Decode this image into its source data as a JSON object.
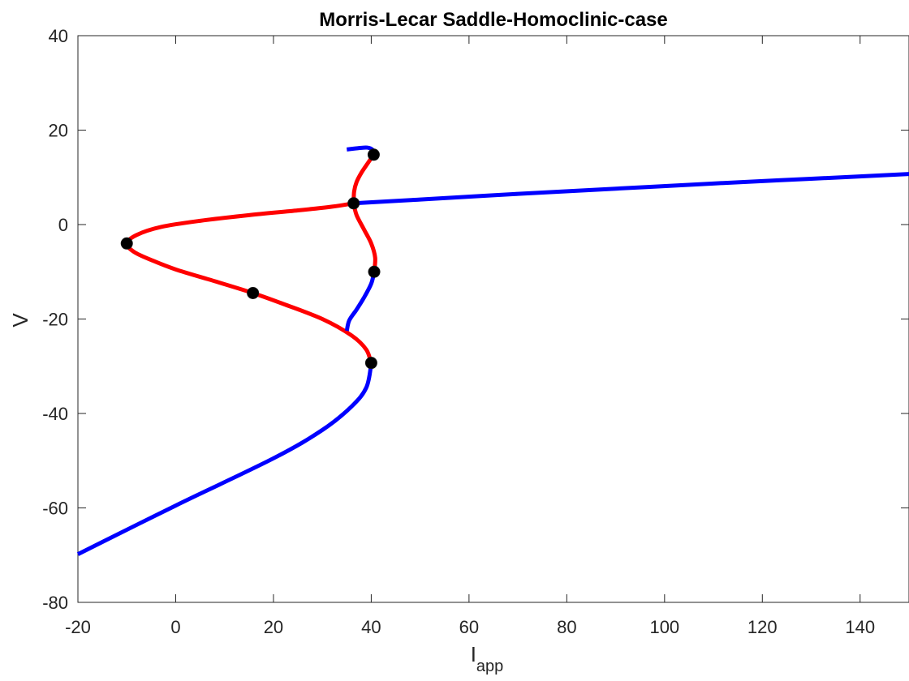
{
  "chart_data": {
    "type": "line",
    "title": "Morris-Lecar Saddle-Homoclinic-case",
    "xlabel_main": "I",
    "xlabel_sub": "app",
    "ylabel": "V",
    "xlim": [
      -20,
      150
    ],
    "ylim": [
      -80,
      40
    ],
    "x_ticks": [
      "-20",
      "0",
      "20",
      "40",
      "60",
      "80",
      "100",
      "120",
      "140"
    ],
    "y_ticks": [
      "-80",
      "-60",
      "-40",
      "-20",
      "0",
      "20",
      "40"
    ],
    "grid": false,
    "colors": {
      "stable": "#0000ff",
      "unstable": "#ff0000",
      "points": "#000000"
    },
    "series": [
      {
        "color": "#0000ff",
        "points": [
          [
            -20,
            -69.8
          ],
          [
            0,
            -59.5
          ],
          [
            20,
            -49.5
          ],
          [
            30,
            -43.5
          ],
          [
            36,
            -38.5
          ],
          [
            39,
            -34.5
          ],
          [
            40,
            -29.5
          ]
        ]
      },
      {
        "color": "#ff0000",
        "points": [
          [
            40,
            -29.5
          ],
          [
            39,
            -26.5
          ],
          [
            36,
            -23.5
          ],
          [
            30,
            -20
          ],
          [
            22,
            -16.8
          ],
          [
            15.8,
            -14.5
          ],
          [
            8,
            -12
          ],
          [
            0,
            -9.5
          ],
          [
            -5,
            -7.5
          ],
          [
            -8.5,
            -5.8
          ],
          [
            -10,
            -4
          ],
          [
            -8,
            -2.2
          ],
          [
            -3,
            -0.5
          ],
          [
            5,
            0.8
          ],
          [
            15,
            2
          ],
          [
            25,
            3
          ],
          [
            32,
            3.8
          ],
          [
            36.4,
            4.5
          ]
        ]
      },
      {
        "color": "#0000ff",
        "points": [
          [
            36.4,
            4.5
          ],
          [
            50,
            5.3
          ],
          [
            70,
            6.5
          ],
          [
            90,
            7.6
          ],
          [
            110,
            8.7
          ],
          [
            130,
            9.7
          ],
          [
            150,
            10.7
          ]
        ]
      },
      {
        "color": "#ff0000",
        "points": [
          [
            36.4,
            4.5
          ],
          [
            37,
            2
          ],
          [
            38.5,
            -1
          ],
          [
            40,
            -4
          ],
          [
            40.8,
            -7
          ],
          [
            40.6,
            -10
          ]
        ]
      },
      {
        "color": "#0000ff",
        "points": [
          [
            40.6,
            -10
          ],
          [
            40,
            -12.5
          ],
          [
            38.5,
            -15.5
          ],
          [
            37,
            -18
          ],
          [
            35.5,
            -20.3
          ],
          [
            35,
            -22.5
          ]
        ]
      },
      {
        "color": "#ff0000",
        "points": [
          [
            36.4,
            4.5
          ],
          [
            36.5,
            7
          ],
          [
            37,
            9
          ],
          [
            38,
            11
          ],
          [
            39.3,
            13
          ],
          [
            40.5,
            14.8
          ]
        ]
      },
      {
        "color": "#0000ff",
        "points": [
          [
            40.5,
            14.8
          ],
          [
            40.3,
            15.8
          ],
          [
            39.2,
            16.3
          ],
          [
            37.5,
            16.2
          ],
          [
            35,
            15.9
          ]
        ]
      }
    ],
    "markers": [
      [
        40.5,
        14.8
      ],
      [
        36.4,
        4.5
      ],
      [
        -10,
        -4
      ],
      [
        40.6,
        -10
      ],
      [
        15.8,
        -14.5
      ],
      [
        40,
        -29.3
      ]
    ]
  }
}
